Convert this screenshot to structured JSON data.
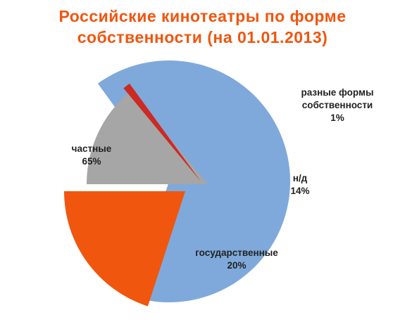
{
  "chart_data": {
    "type": "pie",
    "title": [
      "Российские кинотеатры по форме",
      "собственности (на 01.01.2013)"
    ],
    "slices": [
      {
        "name": "частные",
        "value": 65,
        "label": "65%",
        "color": "#7fa9db"
      },
      {
        "name": "государственные",
        "value": 20,
        "label": "20%",
        "color": "#f0560e"
      },
      {
        "name": "н/д",
        "value": 14,
        "label": "14%",
        "color": "#a6a6a6"
      },
      {
        "name": [
          "разные формы",
          "собственности"
        ],
        "value": 1,
        "label": "1%",
        "color": "#cc2a22"
      }
    ],
    "exploded": true,
    "legend": "none"
  },
  "colors": {
    "title": "#f0560e"
  }
}
